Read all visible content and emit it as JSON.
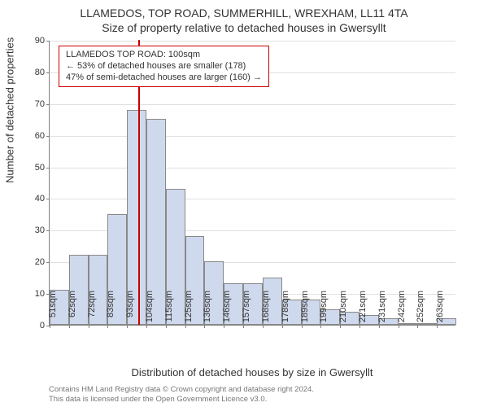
{
  "title": {
    "line1": "LLAMEDOS, TOP ROAD, SUMMERHILL, WREXHAM, LL11 4TA",
    "line2": "Size of property relative to detached houses in Gwersyllt"
  },
  "chart": {
    "type": "histogram",
    "ylim": [
      0,
      90
    ],
    "ytick_step": 10,
    "yticks": [
      0,
      10,
      20,
      30,
      40,
      50,
      60,
      70,
      80,
      90
    ],
    "xticks": [
      "51sqm",
      "62sqm",
      "72sqm",
      "83sqm",
      "93sqm",
      "104sqm",
      "115sqm",
      "125sqm",
      "136sqm",
      "146sqm",
      "157sqm",
      "168sqm",
      "178sqm",
      "189sqm",
      "199sqm",
      "210sqm",
      "221sqm",
      "231sqm",
      "242sqm",
      "252sqm",
      "263sqm"
    ],
    "bars": [
      11,
      22,
      22,
      35,
      68,
      65,
      43,
      28,
      20,
      13,
      13,
      15,
      8,
      8,
      5,
      4,
      3,
      2,
      0,
      0,
      2
    ],
    "bar_color": "#cfd9ed",
    "bar_border": "#888888",
    "grid_color": "#e0e0e0",
    "axis_color": "#808080",
    "background_color": "#ffffff",
    "marker_position": 100,
    "marker_color": "#cc0000",
    "ylabel": "Number of detached properties",
    "xlabel": "Distribution of detached houses by size in Gwersyllt"
  },
  "annotation": {
    "line1": "LLAMEDOS TOP ROAD: 100sqm",
    "line2": "← 53% of detached houses are smaller (178)",
    "line3": "47% of semi-detached houses are larger (160) →",
    "border_color": "#cc0000"
  },
  "copyright": {
    "line1": "Contains HM Land Registry data © Crown copyright and database right 2024.",
    "line2": "This data is licensed under the Open Government Licence v3.0."
  }
}
